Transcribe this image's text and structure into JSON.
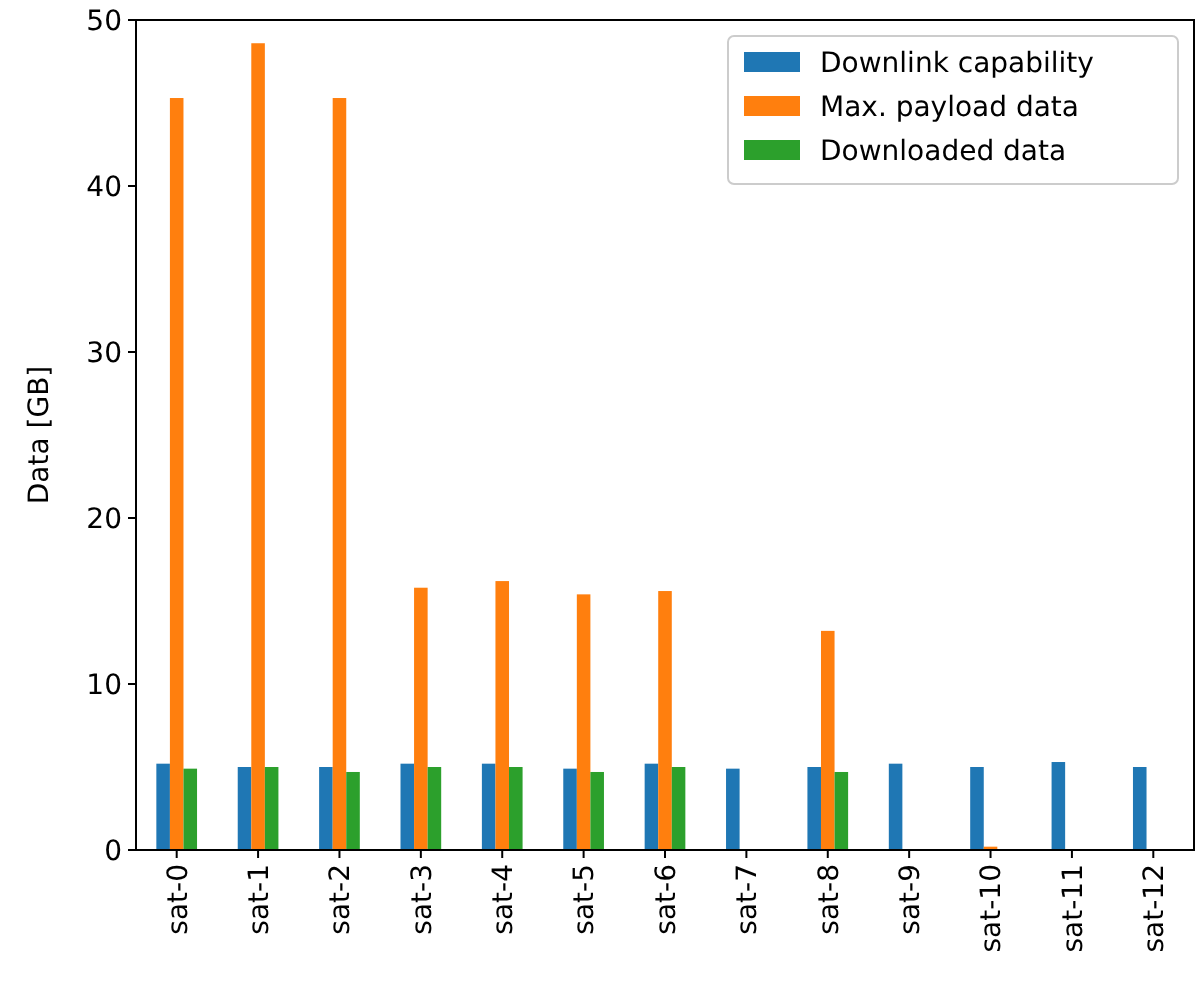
{
  "chart_data": {
    "type": "bar",
    "ylabel": "Data [GB]",
    "categories": [
      "sat-0",
      "sat-1",
      "sat-2",
      "sat-3",
      "sat-4",
      "sat-5",
      "sat-6",
      "sat-7",
      "sat-8",
      "sat-9",
      "sat-10",
      "sat-11",
      "sat-12"
    ],
    "series": [
      {
        "name": "Downlink capability",
        "color": "#1f77b4",
        "values": [
          5.2,
          5.0,
          5.0,
          5.2,
          5.2,
          4.9,
          5.2,
          4.9,
          5.0,
          5.2,
          5.0,
          5.3,
          5.0
        ]
      },
      {
        "name": "Max. payload data",
        "color": "#ff7f0e",
        "values": [
          45.3,
          48.6,
          45.3,
          15.8,
          16.2,
          15.4,
          15.6,
          0,
          13.2,
          0,
          0.2,
          0,
          0
        ]
      },
      {
        "name": "Downloaded data",
        "color": "#2ca02c",
        "values": [
          4.9,
          5.0,
          4.7,
          5.0,
          5.0,
          4.7,
          5.0,
          0,
          4.7,
          0,
          0,
          0,
          0
        ]
      }
    ],
    "ylim": [
      0,
      50
    ],
    "yticks": [
      0,
      10,
      20,
      30,
      40,
      50
    ],
    "legend": "top right"
  }
}
